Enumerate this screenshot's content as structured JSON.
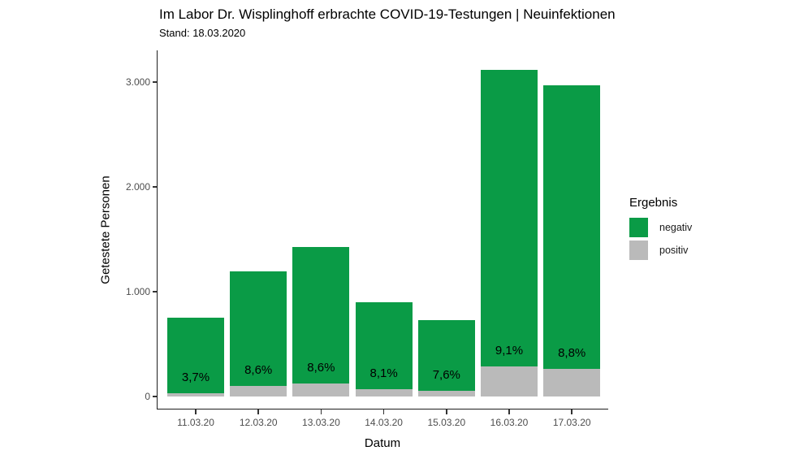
{
  "title": "Im Labor Dr. Wisplinghoff erbrachte COVID-19-Testungen | Neuinfektionen",
  "subtitle": "Stand: 18.03.2020",
  "legend": {
    "title": "Ergebnis",
    "items": [
      {
        "label": "negativ",
        "color": "#0a9b46"
      },
      {
        "label": "positiv",
        "color": "#bababa"
      }
    ]
  },
  "chart_data": {
    "type": "bar",
    "stacked": true,
    "title": "Im Labor Dr. Wisplinghoff erbrachte COVID-19-Testungen | Neuinfektionen",
    "subtitle": "Stand: 18.03.2020",
    "xlabel": "Datum",
    "ylabel": "Getestete Personen",
    "categories": [
      "11.03.20",
      "12.03.20",
      "13.03.20",
      "14.03.20",
      "15.03.20",
      "16.03.20",
      "17.03.20"
    ],
    "series": [
      {
        "name": "negativ",
        "color": "#0a9b46",
        "values": [
          722,
          1092,
          1307,
          827,
          675,
          2836,
          2709
        ]
      },
      {
        "name": "positiv",
        "color": "#bababa",
        "values": [
          28,
          103,
          123,
          73,
          55,
          284,
          261
        ]
      }
    ],
    "totals": [
      750,
      1195,
      1430,
      900,
      730,
      3120,
      2970
    ],
    "bar_labels": [
      "3,7%",
      "8,6%",
      "8,6%",
      "8,1%",
      "7,6%",
      "9,1%",
      "8,8%"
    ],
    "yticks": {
      "values": [
        0,
        1000,
        2000,
        3000
      ],
      "labels": [
        "0",
        "1.000",
        "2.000",
        "3.000"
      ]
    },
    "ylim": [
      0,
      3300
    ],
    "grid": false,
    "legend_position": "right"
  }
}
